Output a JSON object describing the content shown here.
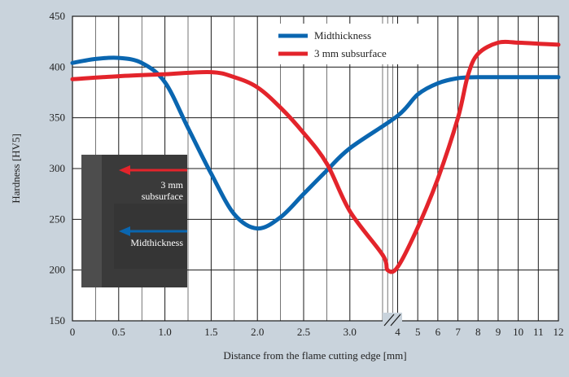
{
  "colors": {
    "background": "#c9d3dc",
    "plot_area": "#ffffff",
    "grid": "#1a1a1a",
    "midthickness": "#0a66b0",
    "subsurface": "#e3242b",
    "inset_photo": "#3a3a3a"
  },
  "chart_data": {
    "type": "line",
    "title": "",
    "xlabel": "Distance from the flame cutting edge [mm]",
    "ylabel": "Hardness [HV5]",
    "ylim": [
      150,
      450
    ],
    "yticks": [
      "150",
      "200",
      "250",
      "300",
      "350",
      "400",
      "450"
    ],
    "xaxis_note": "broken axis: linear 0–3.0 (0.5 steps), then 4–12 (1 mm steps)",
    "xticks": [
      "0",
      "0.5",
      "1.0",
      "1.5",
      "2.0",
      "2.5",
      "3.0",
      "4",
      "5",
      "6",
      "7",
      "8",
      "9",
      "10",
      "11",
      "12"
    ],
    "grid": true,
    "legend_position": "top-center",
    "series": [
      {
        "name": "Midthickness",
        "color": "#0a66b0",
        "points": [
          [
            0,
            404
          ],
          [
            0.25,
            408
          ],
          [
            0.5,
            409
          ],
          [
            0.75,
            404
          ],
          [
            1.0,
            385
          ],
          [
            1.25,
            340
          ],
          [
            1.5,
            295
          ],
          [
            1.75,
            255
          ],
          [
            2.0,
            241
          ],
          [
            2.25,
            252
          ],
          [
            2.5,
            275
          ],
          [
            2.75,
            298
          ],
          [
            3.0,
            320
          ],
          [
            4,
            352
          ],
          [
            5,
            373
          ],
          [
            6,
            384
          ],
          [
            7,
            389
          ],
          [
            8,
            390
          ],
          [
            9,
            390
          ],
          [
            10,
            390
          ],
          [
            11,
            390
          ],
          [
            12,
            390
          ]
        ]
      },
      {
        "name": "3 mm subsurface",
        "color": "#e3242b",
        "points": [
          [
            0,
            388
          ],
          [
            0.5,
            391
          ],
          [
            1.0,
            393
          ],
          [
            1.5,
            395
          ],
          [
            1.75,
            390
          ],
          [
            2.0,
            380
          ],
          [
            2.25,
            360
          ],
          [
            2.5,
            335
          ],
          [
            2.75,
            305
          ],
          [
            3.0,
            258
          ],
          [
            3.25,
            215
          ],
          [
            3.5,
            200
          ],
          [
            4,
            203
          ],
          [
            5,
            242
          ],
          [
            6,
            290
          ],
          [
            7,
            350
          ],
          [
            7.5,
            392
          ],
          [
            8,
            413
          ],
          [
            9,
            424
          ],
          [
            10,
            424
          ],
          [
            11,
            423
          ],
          [
            12,
            422
          ]
        ]
      }
    ],
    "inset": {
      "description_label_1": "3 mm subsurface",
      "label_1_line1": "3 mm",
      "label_1_line2": "subsurface",
      "label_2": "Midthickness"
    }
  }
}
